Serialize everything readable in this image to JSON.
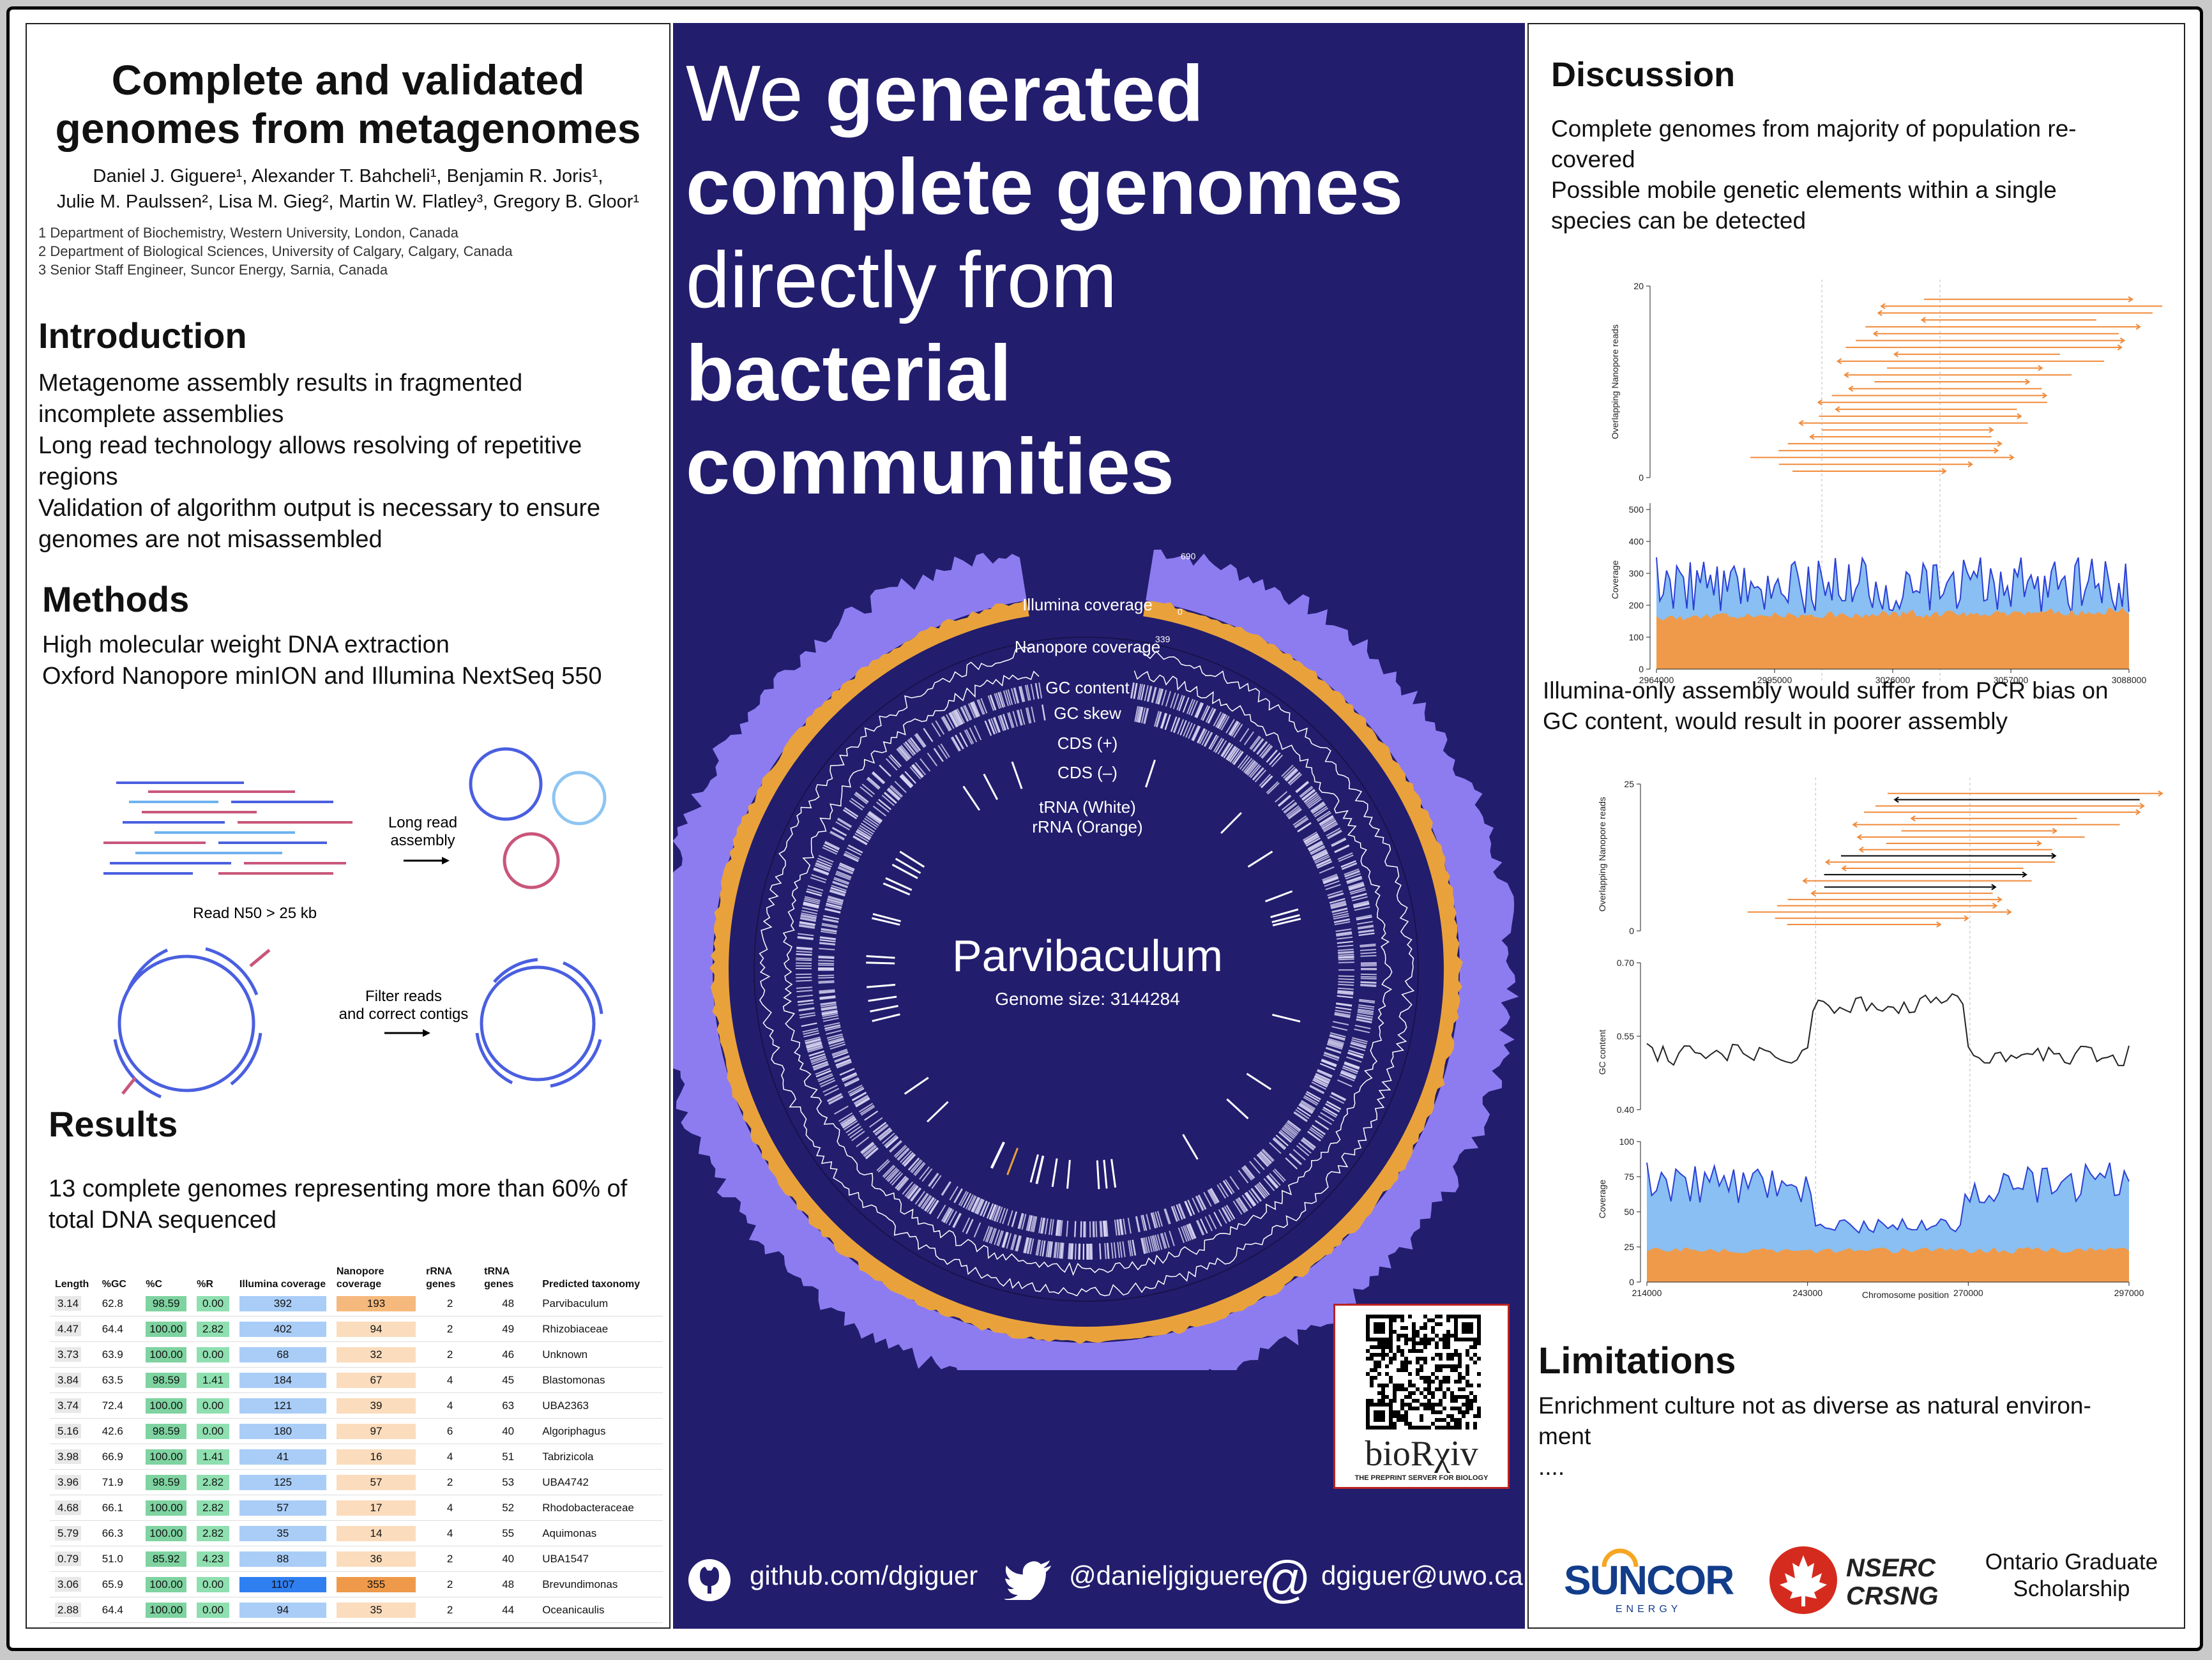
{
  "title": [
    "Complete and validated",
    "genomes from metagenomes"
  ],
  "authors": {
    "line1": "Daniel J. Giguere¹, Alexander T. Bahcheli¹, Benjamin R. Joris¹,",
    "line2": "Julie M. Paulssen², Lisa M. Gieg², Martin W. Flatley³, Gregory B. Gloor¹"
  },
  "affiliations": [
    "1 Department of Biochemistry, Western University, London, Canada",
    "2 Department of Biological Sciences, University of Calgary, Calgary, Canada",
    "3 Senior Staff Engineer, Suncor Energy, Sarnia, Canada"
  ],
  "intro": {
    "heading": "Introduction",
    "lines": [
      "Metagenome assembly results in fragmented",
      "incomplete assemblies",
      "Long read technology allows resolving of repetitive",
      "regions",
      "Validation of algorithm output is necessary to ensure",
      "genomes are not misassembled"
    ]
  },
  "methods": {
    "heading": "Methods",
    "lines": [
      "High molecular weight DNA extraction",
      "Oxford Nanopore minION and Illumina NextSeq 550"
    ],
    "diagram": {
      "long_read": [
        "Long read",
        "assembly"
      ],
      "n50": "Read N50 > 25 kb",
      "filter": [
        "Filter reads",
        "and correct contigs"
      ]
    }
  },
  "results": {
    "heading": "Results",
    "lines": [
      "13 complete genomes representing more than 60% of",
      "total DNA sequenced"
    ]
  },
  "table": {
    "headers": [
      "Length",
      "%GC",
      "%C",
      "%R",
      "Illumina coverage",
      "Nanopore coverage",
      "rRNA genes",
      "tRNA genes",
      "Predicted taxonomy"
    ],
    "rows": [
      [
        "3.14",
        "62.8",
        "98.59",
        "0.00",
        "392",
        "193",
        "2",
        "48",
        "Parvibaculum"
      ],
      [
        "4.47",
        "64.4",
        "100.00",
        "2.82",
        "402",
        "94",
        "2",
        "49",
        "Rhizobiaceae"
      ],
      [
        "3.73",
        "63.9",
        "100.00",
        "0.00",
        "68",
        "32",
        "2",
        "46",
        "Unknown"
      ],
      [
        "3.84",
        "63.5",
        "98.59",
        "1.41",
        "184",
        "67",
        "4",
        "45",
        "Blastomonas"
      ],
      [
        "3.74",
        "72.4",
        "100.00",
        "0.00",
        "121",
        "39",
        "4",
        "63",
        "UBA2363"
      ],
      [
        "5.16",
        "42.6",
        "98.59",
        "0.00",
        "180",
        "97",
        "6",
        "40",
        "Algoriphagus"
      ],
      [
        "3.98",
        "66.9",
        "100.00",
        "1.41",
        "41",
        "16",
        "4",
        "51",
        "Tabrizicola"
      ],
      [
        "3.96",
        "71.9",
        "98.59",
        "2.82",
        "125",
        "57",
        "2",
        "53",
        "UBA4742"
      ],
      [
        "4.68",
        "66.1",
        "100.00",
        "2.82",
        "57",
        "17",
        "4",
        "52",
        "Rhodobacteraceae"
      ],
      [
        "5.79",
        "66.3",
        "100.00",
        "2.82",
        "35",
        "14",
        "4",
        "55",
        "Aquimonas"
      ],
      [
        "0.79",
        "51.0",
        "85.92",
        "4.23",
        "88",
        "36",
        "2",
        "40",
        "UBA1547"
      ],
      [
        "3.06",
        "65.9",
        "100.00",
        "0.00",
        "1107",
        "355",
        "2",
        "48",
        "Brevundimonas"
      ],
      [
        "2.88",
        "64.4",
        "100.00",
        "0.00",
        "94",
        "35",
        "2",
        "44",
        "Oceanicaulis"
      ]
    ]
  },
  "headline": {
    "parts": [
      [
        "We ",
        false
      ],
      [
        "generated",
        true
      ]
    ],
    "l2": "complete genomes",
    "l3": "directly from",
    "l4": "bacterial",
    "l5": "communities"
  },
  "circos": {
    "title": "Parvibaculum",
    "size": "Genome size: 3144284",
    "tracks": [
      "Illumina coverage",
      "Nanopore coverage",
      "GC content",
      "GC skew",
      "CDS (+)",
      "CDS (–)",
      "tRNA (White)",
      "rRNA (Orange)"
    ],
    "max1": "690",
    "max2": "339",
    "zero": "0"
  },
  "biorxiv": {
    "name": "bioRχiv",
    "tag": "THE PREPRINT SERVER FOR BIOLOGY"
  },
  "footer": {
    "github": "github.com/dgiguer",
    "twitter": "@danieljgiguere",
    "at": "@",
    "email": "dgiguer@uwo.ca"
  },
  "discussion": {
    "heading": "Discussion",
    "lines": [
      "Complete genomes from majority of population re-",
      "covered",
      "Possible mobile genetic elements within a single",
      "species can be detected"
    ],
    "middle": [
      "Illumina-only assembly would suffer from PCR bias on",
      "GC content, would result in poorer assembly"
    ]
  },
  "fig1": {
    "ylab_reads": "Overlapping Nanopore reads",
    "ylab_cov": "Coverage",
    "reads_ticks": [
      "20",
      "0"
    ],
    "cov_ticks": [
      "500",
      "400",
      "300",
      "200",
      "100",
      "0"
    ],
    "x_ticks": [
      "2964000",
      "2995000",
      "3026000",
      "3057000",
      "3088000"
    ]
  },
  "fig2": {
    "ylab_reads": "Overlapping Nanopore reads",
    "ylab_gc": "GC content",
    "ylab_cov": "Coverage",
    "reads_ticks": [
      "25",
      "0"
    ],
    "gc_ticks": [
      "0.70",
      "0.55",
      "0.40"
    ],
    "cov_ticks": [
      "100",
      "75",
      "50",
      "25",
      "0"
    ],
    "x_ticks": [
      "214000",
      "243000",
      "270000",
      "297000"
    ],
    "xlabel": "Chromosome position"
  },
  "limitations": {
    "heading": "Limitations",
    "lines": [
      "Enrichment culture not as diverse as natural environ-",
      "ment",
      "...."
    ]
  },
  "sponsors": {
    "suncor": "SUNCOR",
    "suncor_sub": "ENERGY",
    "nserc": "NSERC",
    "crsng": "CRSNG",
    "ogs": [
      "Ontario Graduate",
      "Scholarship"
    ]
  },
  "colors": {
    "navy": "#221d6d",
    "orange": "#e9a23b",
    "purple": "#8d7cf0",
    "blue": "#7fb6f0",
    "green": "#5cc28a"
  }
}
